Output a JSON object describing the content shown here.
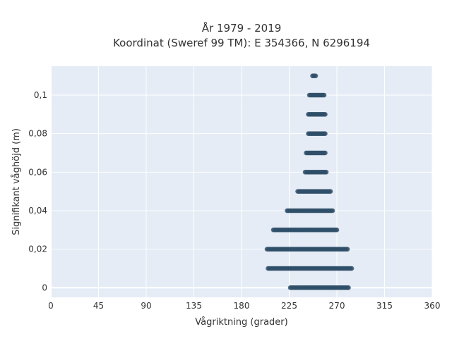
{
  "chart_data": {
    "type": "scatter",
    "title_line1": "År 1979 - 2019",
    "title_line2": "Koordinat (Sweref 99 TM): E 354366, N 6296194",
    "xlabel": "Vågriktning (grader)",
    "ylabel": "Signifikant våghöjd (m)",
    "xlim": [
      0,
      360
    ],
    "ylim": [
      -0.005,
      0.115
    ],
    "x_ticks": [
      {
        "value": 0,
        "label": "0"
      },
      {
        "value": 45,
        "label": "45"
      },
      {
        "value": 90,
        "label": "90"
      },
      {
        "value": 135,
        "label": "135"
      },
      {
        "value": 180,
        "label": "180"
      },
      {
        "value": 225,
        "label": "225"
      },
      {
        "value": 270,
        "label": "270"
      },
      {
        "value": 315,
        "label": "315"
      },
      {
        "value": 360,
        "label": "360"
      }
    ],
    "y_ticks": [
      {
        "value": 0,
        "label": "0"
      },
      {
        "value": 0.02,
        "label": "0,02"
      },
      {
        "value": 0.04,
        "label": "0,04"
      },
      {
        "value": 0.06,
        "label": "0,06"
      },
      {
        "value": 0.08,
        "label": "0,08"
      },
      {
        "value": 0.1,
        "label": "0,1"
      }
    ],
    "grid": true,
    "marker_color": "#2f4f69",
    "plot_background": "#e5ecf6",
    "point_bands": [
      {
        "y": 0,
        "x_min": 226,
        "x_max": 281
      },
      {
        "y": 0.01,
        "x_min": 205,
        "x_max": 284
      },
      {
        "y": 0.02,
        "x_min": 204,
        "x_max": 280
      },
      {
        "y": 0.03,
        "x_min": 210,
        "x_max": 270
      },
      {
        "y": 0.04,
        "x_min": 223,
        "x_max": 266
      },
      {
        "y": 0.05,
        "x_min": 233,
        "x_max": 264
      },
      {
        "y": 0.06,
        "x_min": 240,
        "x_max": 260
      },
      {
        "y": 0.07,
        "x_min": 241,
        "x_max": 259
      },
      {
        "y": 0.08,
        "x_min": 243,
        "x_max": 259
      },
      {
        "y": 0.09,
        "x_min": 243,
        "x_max": 259
      },
      {
        "y": 0.1,
        "x_min": 244,
        "x_max": 258
      },
      {
        "y": 0.11,
        "x_min": 247,
        "x_max": 250
      }
    ]
  }
}
